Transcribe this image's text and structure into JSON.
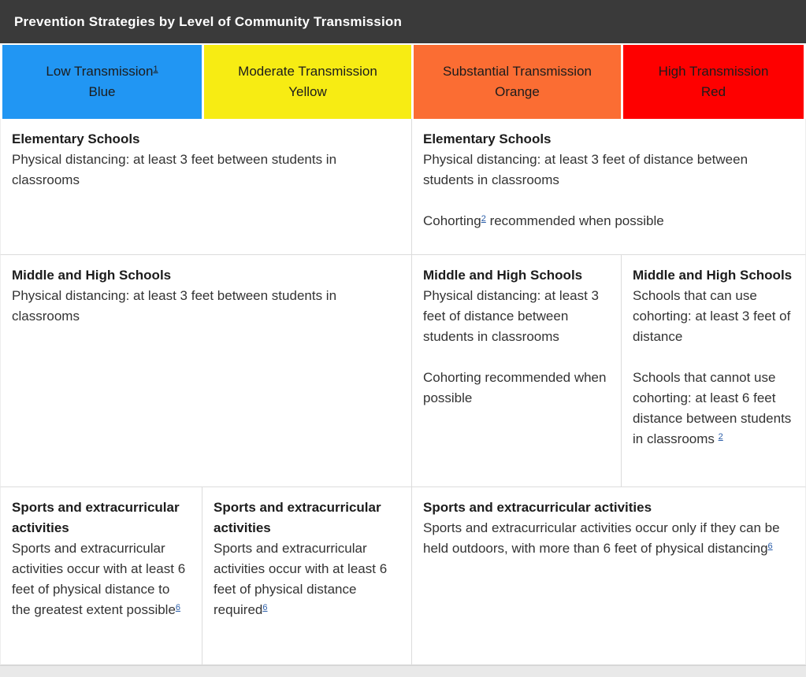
{
  "table": {
    "title": "Prevention Strategies by Level of Community Transmission"
  },
  "columns": [
    {
      "title": "Low Transmission",
      "footnote": "1",
      "color_name": "Blue",
      "bg": "#2196f3"
    },
    {
      "title": "Moderate Transmission",
      "color_name": "Yellow",
      "bg": "#f7ec13"
    },
    {
      "title": "Substantial Transmission",
      "color_name": "Orange",
      "bg": "#fb6d33"
    },
    {
      "title": "High Transmission",
      "color_name": "Red",
      "bg": "#fe0000"
    }
  ],
  "cells": {
    "elementary_low_moderate": {
      "heading": "Elementary Schools",
      "p1": "Physical distancing: at least 3 feet between students in classrooms"
    },
    "elementary_substantial_high": {
      "heading": "Elementary Schools",
      "p1": "Physical distancing: at least 3 feet of distance between students in classrooms",
      "p2_pre": "Cohorting",
      "p2_footnote": "2",
      "p2_post": " recommended when possible"
    },
    "middle_low_moderate": {
      "heading": "Middle and High Schools",
      "p1": "Physical distancing: at least 3 feet between students in classrooms"
    },
    "middle_substantial": {
      "heading": "Middle and High Schools",
      "p1": "Physical distancing: at least 3 feet of distance between students in classrooms",
      "p2": "Cohorting recommended when possible"
    },
    "middle_high": {
      "heading": "Middle and High Schools",
      "p1": "Schools that can use cohorting: at least 3 feet of distance",
      "p2_pre": "Schools that cannot use cohorting: at least 6 feet distance between students in classrooms ",
      "p2_footnote": "2"
    },
    "sports_low": {
      "heading": "Sports and extracurricular activities",
      "p1_pre": "Sports and extracurricular activities occur with at least 6 feet of physical distance to the greatest extent possible",
      "p1_footnote": "6"
    },
    "sports_moderate": {
      "heading": "Sports and extracurricular activities",
      "p1_pre": "Sports and extracurricular activities occur with at least 6 feet of physical distance required",
      "p1_footnote": "6"
    },
    "sports_substantial_high": {
      "heading": "Sports and extracurricular activities",
      "p1_pre": "Sports and extracurricular activities occur only if they can be held outdoors, with more than 6 feet of physical distancing",
      "p1_footnote": "6"
    }
  },
  "colors": {
    "title_bar_bg": "#3a3a3a",
    "title_text": "#ffffff",
    "header_text": "#1c1c1c",
    "body_text": "#333333",
    "link": "#2a5da8",
    "border": "#dcdcdc",
    "footer_bar": "#e9e9e9"
  }
}
